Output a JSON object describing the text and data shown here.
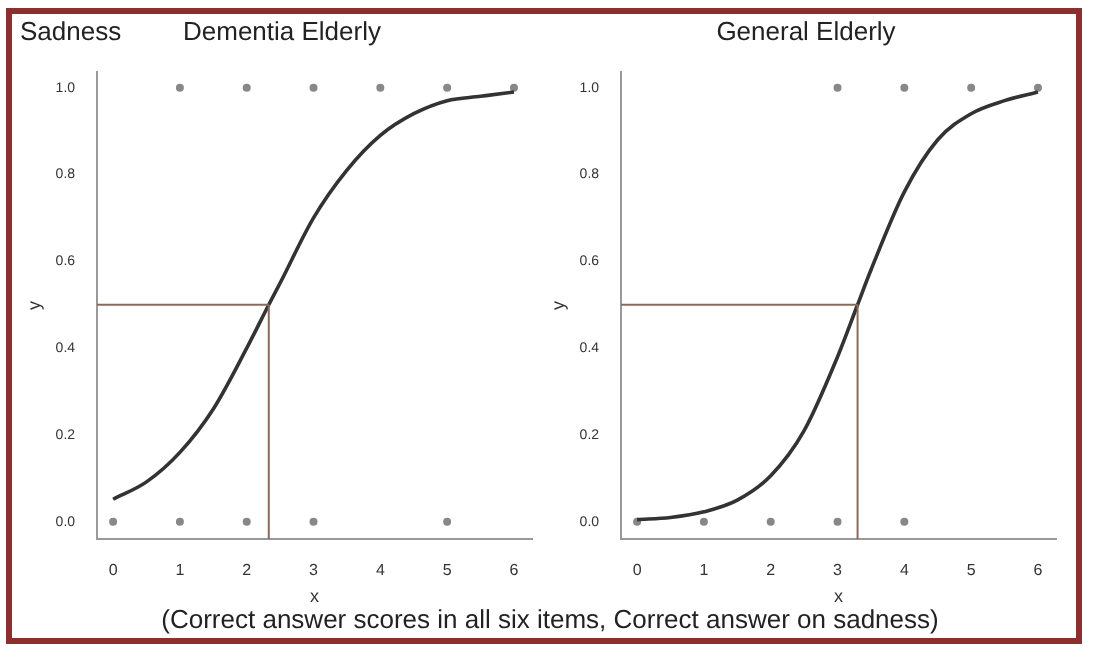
{
  "chart_data": [
    {
      "type": "line",
      "title": "Dementia Elderly",
      "xlabel": "x",
      "ylabel": "y",
      "xlim": [
        -0.24,
        6.27
      ],
      "ylim": [
        -0.04,
        1.036
      ],
      "xticks": [
        0,
        1,
        2,
        3,
        4,
        5,
        6
      ],
      "yticks": [
        {
          "value": 0,
          "label": "0.0"
        },
        {
          "value": 0.2,
          "label": "0.2"
        },
        {
          "value": 0.4,
          "label": "0.4"
        },
        {
          "value": 0.6,
          "label": "0.6"
        },
        {
          "value": 0.8,
          "label": "0.8"
        },
        {
          "value": 1,
          "label": "1.0"
        }
      ],
      "grid": false,
      "legend": false,
      "series": [
        {
          "type": "line",
          "color": "#333333",
          "marker": "none",
          "x": [
            0,
            0.5,
            1,
            1.5,
            2,
            2.33,
            2.5,
            3,
            3.5,
            4,
            4.5,
            5,
            5.5,
            6
          ],
          "values": [
            0.052,
            0.092,
            0.16,
            0.26,
            0.4,
            0.5,
            0.55,
            0.7,
            0.81,
            0.89,
            0.94,
            0.97,
            0.98,
            0.99
          ]
        },
        {
          "type": "scatter",
          "color": "#888888",
          "marker": "circle",
          "x": [
            1,
            2,
            3,
            4,
            5,
            6,
            0,
            1,
            2,
            3,
            5
          ],
          "values": [
            1,
            1,
            1,
            1,
            1,
            1,
            0,
            0,
            0,
            0,
            0
          ]
        }
      ],
      "ref_lines": [
        {
          "axis": "x",
          "value": 2.33,
          "color": "#8b6a5a"
        },
        {
          "axis": "y",
          "value": 0.5,
          "color": "#8b6a5a"
        }
      ],
      "annotations": [
        "Sadness",
        "(Correct answer scores in all six items, Correct answer on sadness)"
      ]
    },
    {
      "type": "line",
      "title": "General Elderly",
      "xlabel": "x",
      "ylabel": "y",
      "xlim": [
        -0.24,
        6.27
      ],
      "ylim": [
        -0.04,
        1.036
      ],
      "xticks": [
        0,
        1,
        2,
        3,
        4,
        5,
        6
      ],
      "yticks": [
        {
          "value": 0,
          "label": "0.0"
        },
        {
          "value": 0.2,
          "label": "0.2"
        },
        {
          "value": 0.4,
          "label": "0.4"
        },
        {
          "value": 0.6,
          "label": "0.6"
        },
        {
          "value": 0.8,
          "label": "0.8"
        },
        {
          "value": 1,
          "label": "1.0"
        }
      ],
      "grid": false,
      "legend": false,
      "series": [
        {
          "type": "line",
          "color": "#333333",
          "marker": "none",
          "x": [
            0,
            0.5,
            1,
            1.5,
            2,
            2.5,
            3,
            3.3,
            3.5,
            4,
            4.5,
            5,
            5.5,
            6
          ],
          "values": [
            0.005,
            0.01,
            0.023,
            0.05,
            0.106,
            0.21,
            0.38,
            0.5,
            0.58,
            0.76,
            0.88,
            0.94,
            0.97,
            0.99
          ]
        },
        {
          "type": "scatter",
          "color": "#888888",
          "marker": "circle",
          "x": [
            3,
            4,
            5,
            6,
            0,
            1,
            2,
            3,
            4
          ],
          "values": [
            1,
            1,
            1,
            1,
            0,
            0,
            0,
            0,
            0
          ]
        }
      ],
      "ref_lines": [
        {
          "axis": "x",
          "value": 3.3,
          "color": "#8b6a5a"
        },
        {
          "axis": "y",
          "value": 0.5,
          "color": "#8b6a5a"
        }
      ]
    }
  ]
}
